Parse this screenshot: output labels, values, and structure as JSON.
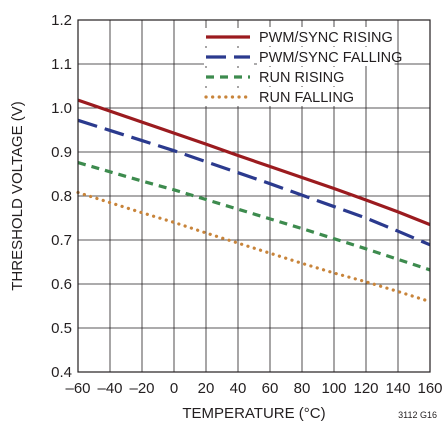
{
  "chart_data": {
    "type": "line",
    "title": "",
    "xlabel": "TEMPERATURE (°C)",
    "ylabel": "THRESHOLD VOLTAGE (V)",
    "xlim": [
      -60,
      160
    ],
    "ylim": [
      0.4,
      1.2
    ],
    "xticks": [
      -60,
      -40,
      -20,
      0,
      20,
      40,
      60,
      80,
      100,
      120,
      140,
      160
    ],
    "yticks": [
      0.4,
      0.5,
      0.6,
      0.7,
      0.8,
      0.9,
      1.0,
      1.1,
      1.2
    ],
    "ytick_labels": [
      "0.4",
      "0.5",
      "0.6",
      "0.7",
      "0.8",
      "0.9",
      "1.0",
      "1.1",
      "1.2"
    ],
    "xtick_labels": [
      "–60",
      "–40",
      "–20",
      "0",
      "20",
      "40",
      "60",
      "80",
      "100",
      "120",
      "140",
      "160"
    ],
    "grid": true,
    "legend_position": "top-right",
    "figure_label": "3112 G16",
    "series": [
      {
        "name": "PWM/SYNC RISING",
        "color": "#9b1b1f",
        "style": "solid",
        "x": [
          -60,
          -40,
          -20,
          0,
          20,
          40,
          60,
          80,
          100,
          120,
          140,
          160
        ],
        "y": [
          1.018,
          0.993,
          0.968,
          0.943,
          0.918,
          0.892,
          0.867,
          0.842,
          0.817,
          0.791,
          0.764,
          0.735
        ]
      },
      {
        "name": "PWM/SYNC FALLING",
        "color": "#2b3a8e",
        "style": "long-dash",
        "x": [
          -60,
          -40,
          -20,
          0,
          20,
          40,
          60,
          80,
          100,
          120,
          140,
          160
        ],
        "y": [
          0.972,
          0.949,
          0.926,
          0.903,
          0.878,
          0.853,
          0.828,
          0.802,
          0.776,
          0.75,
          0.72,
          0.689
        ]
      },
      {
        "name": "RUN RISING",
        "color": "#3d8b4e",
        "style": "short-dash",
        "x": [
          -60,
          -40,
          -20,
          0,
          20,
          40,
          60,
          80,
          100,
          120,
          140,
          160
        ],
        "y": [
          0.876,
          0.855,
          0.834,
          0.814,
          0.792,
          0.77,
          0.748,
          0.726,
          0.703,
          0.68,
          0.656,
          0.632
        ]
      },
      {
        "name": "RUN FALLING",
        "color": "#c8843a",
        "style": "dotted",
        "x": [
          -60,
          -40,
          -20,
          0,
          20,
          40,
          60,
          80,
          100,
          120,
          140,
          160
        ],
        "y": [
          0.808,
          0.785,
          0.762,
          0.74,
          0.716,
          0.693,
          0.67,
          0.647,
          0.625,
          0.605,
          0.583,
          0.56
        ]
      }
    ]
  }
}
